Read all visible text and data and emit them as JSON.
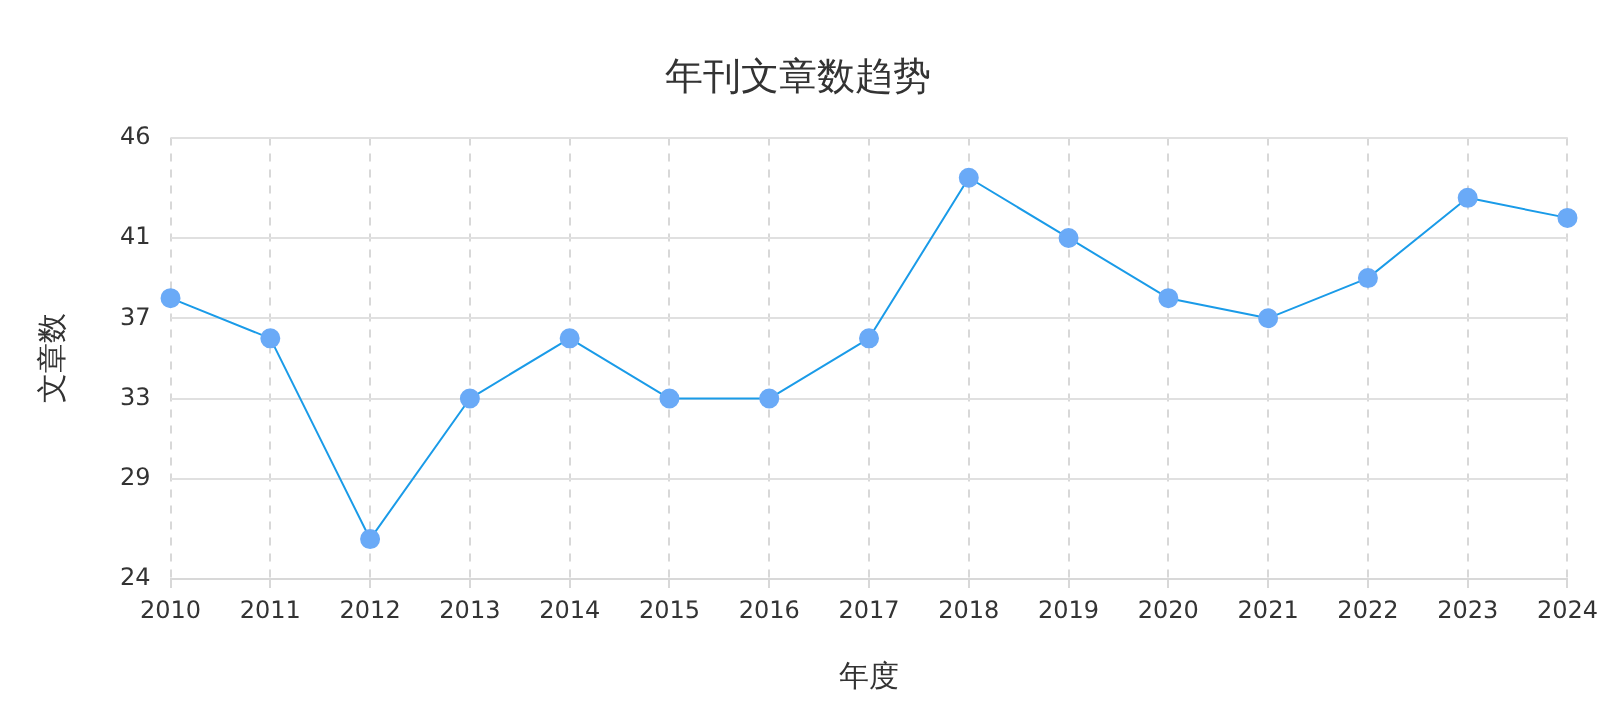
{
  "chart_data": {
    "type": "line",
    "title": "年刊文章数趋势",
    "xlabel": "年度",
    "ylabel": "文章数",
    "categories": [
      "2010",
      "2011",
      "2012",
      "2013",
      "2014",
      "2015",
      "2016",
      "2017",
      "2018",
      "2019",
      "2020",
      "2021",
      "2022",
      "2023",
      "2024"
    ],
    "series": [
      {
        "color": "#1a9be8",
        "values": [
          38,
          36,
          26,
          33,
          36,
          33,
          33,
          36,
          44,
          41,
          38,
          37,
          39,
          43,
          42
        ]
      }
    ],
    "ylim": [
      24,
      46
    ],
    "yticks": [
      24,
      29,
      33,
      37,
      41,
      46
    ],
    "grid": true,
    "marker": "circle",
    "line_style": "solid",
    "legend": false
  }
}
